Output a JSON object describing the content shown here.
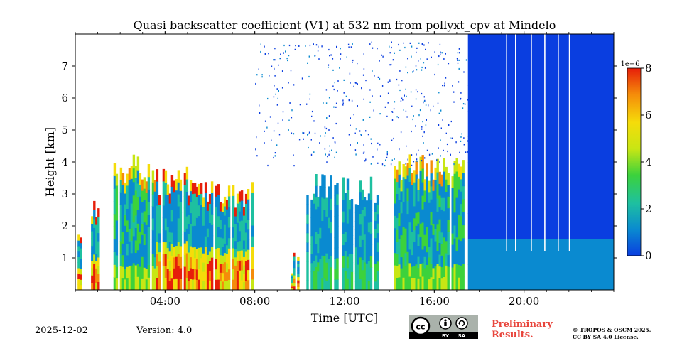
{
  "chart_data": {
    "type": "heatmap",
    "title": "Quasi backscatter coefficient (V1) at 532 nm from pollyxt_cpv at Mindelo",
    "xlabel": "Time [UTC]",
    "ylabel": "Height [km]",
    "xlim_hours": [
      0,
      24
    ],
    "ylim_km": [
      0,
      8
    ],
    "xticks": [
      {
        "value": 4,
        "label": "04:00"
      },
      {
        "value": 8,
        "label": "08:00"
      },
      {
        "value": 12,
        "label": "12:00"
      },
      {
        "value": 16,
        "label": "16:00"
      },
      {
        "value": 20,
        "label": "20:00"
      }
    ],
    "yticks": [
      {
        "value": 1,
        "label": "1"
      },
      {
        "value": 2,
        "label": "2"
      },
      {
        "value": 3,
        "label": "3"
      },
      {
        "value": 4,
        "label": "4"
      },
      {
        "value": 5,
        "label": "5"
      },
      {
        "value": 6,
        "label": "6"
      },
      {
        "value": 7,
        "label": "7"
      }
    ],
    "colorbar": {
      "min": 0,
      "max": 8,
      "scale_label": "1e−6",
      "ticks": [
        {
          "value": 0,
          "label": "0"
        },
        {
          "value": 2,
          "label": "2"
        },
        {
          "value": 4,
          "label": "4"
        },
        {
          "value": 6,
          "label": "6"
        },
        {
          "value": 8,
          "label": "8"
        }
      ],
      "colors": [
        "#0a3ee0",
        "#0a8ad0",
        "#1ec0a0",
        "#3cd23c",
        "#c8e614",
        "#f5dc0a",
        "#f58c0a",
        "#e61e0a"
      ]
    },
    "data_segments": [
      {
        "start_h": 0.1,
        "end_h": 0.25,
        "top_km": 1.9,
        "intensity": "high"
      },
      {
        "start_h": 0.7,
        "end_h": 1.0,
        "top_km": 2.6,
        "intensity": "high"
      },
      {
        "start_h": 1.7,
        "end_h": 3.6,
        "top_km": 3.8,
        "intensity": "medium"
      },
      {
        "start_h": 3.6,
        "end_h": 5.0,
        "top_km": 3.4,
        "intensity": "high"
      },
      {
        "start_h": 5.0,
        "end_h": 7.9,
        "top_km": 3.0,
        "intensity": "high"
      },
      {
        "start_h": 9.6,
        "end_h": 9.9,
        "top_km": 0.9,
        "intensity": "high"
      },
      {
        "start_h": 10.3,
        "end_h": 11.7,
        "top_km": 3.2,
        "intensity": "low"
      },
      {
        "start_h": 11.9,
        "end_h": 13.5,
        "top_km": 3.1,
        "intensity": "low"
      },
      {
        "start_h": 14.2,
        "end_h": 17.3,
        "top_km": 3.8,
        "intensity": "medium"
      },
      {
        "start_h": 17.5,
        "end_h": 24.0,
        "top_km": 8.0,
        "intensity": "clean"
      }
    ]
  },
  "footer": {
    "date": "2025-12-02",
    "version": "Version: 4.0",
    "license_badge": "CC BY SA",
    "preliminary_line1": "Preliminary",
    "preliminary_line2": "Results.",
    "copyright_line1": "© TROPOS & OSCM 2025.",
    "copyright_line2": "CC BY SA 4.0 License."
  }
}
